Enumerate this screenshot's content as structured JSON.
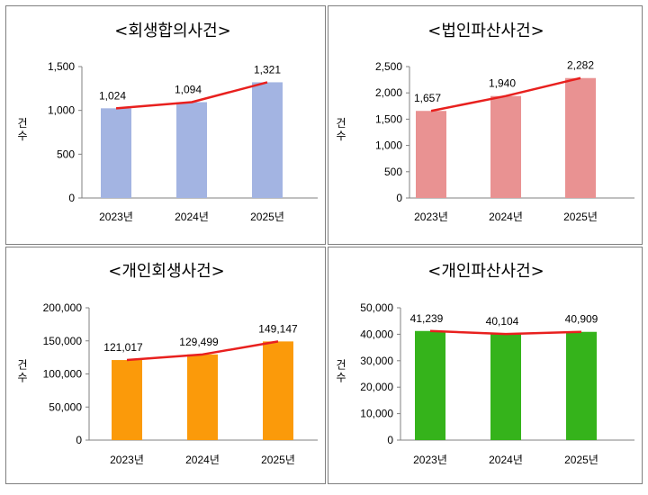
{
  "chart_data": [
    {
      "type": "bar",
      "title": "<회생합의사건>",
      "ylabel": "건수",
      "categories": [
        "2023년",
        "2024년",
        "2025년"
      ],
      "values": [
        1024,
        1094,
        1321
      ],
      "value_labels": [
        "1,024",
        "1,094",
        "1,321"
      ],
      "yticks": [
        0,
        500,
        1000,
        1500
      ],
      "ytick_labels": [
        "0",
        "500",
        "1,000",
        "1,500"
      ],
      "ylim": [
        0,
        1500
      ],
      "bar_color": "#a3b4e2",
      "line_color": "#e8201e",
      "overlay": "line"
    },
    {
      "type": "bar",
      "title": "<법인파산사건>",
      "ylabel": "건수",
      "categories": [
        "2023년",
        "2024년",
        "2025년"
      ],
      "values": [
        1657,
        1940,
        2282
      ],
      "value_labels": [
        "1,657",
        "1,940",
        "2,282"
      ],
      "yticks": [
        0,
        500,
        1000,
        1500,
        2000,
        2500
      ],
      "ytick_labels": [
        "0",
        "500",
        "1,000",
        "1,500",
        "2,000",
        "2,500"
      ],
      "ylim": [
        0,
        2500
      ],
      "bar_color": "#e99292",
      "line_color": "#e8201e",
      "overlay": "line"
    },
    {
      "type": "bar",
      "title": "<개인회생사건>",
      "ylabel": "건수",
      "categories": [
        "2023년",
        "2024년",
        "2025년"
      ],
      "values": [
        121017,
        129499,
        149147
      ],
      "value_labels": [
        "121,017",
        "129,499",
        "149,147"
      ],
      "yticks": [
        0,
        50000,
        100000,
        150000,
        200000
      ],
      "ytick_labels": [
        "0",
        "50,000",
        "100,000",
        "150,000",
        "200,000"
      ],
      "ylim": [
        0,
        200000
      ],
      "bar_color": "#fb9a0a",
      "line_color": "#e8201e",
      "overlay": "line"
    },
    {
      "type": "bar",
      "title": "<개인파산사건>",
      "ylabel": "건수",
      "categories": [
        "2023년",
        "2024년",
        "2025년"
      ],
      "values": [
        41239,
        40104,
        40909
      ],
      "value_labels": [
        "41,239",
        "40,104",
        "40,909"
      ],
      "yticks": [
        0,
        10000,
        20000,
        30000,
        40000,
        50000
      ],
      "ytick_labels": [
        "0",
        "10,000",
        "20,000",
        "30,000",
        "40,000",
        "50,000"
      ],
      "ylim": [
        0,
        50000
      ],
      "bar_color": "#35b31b",
      "line_color": "#e8201e",
      "overlay": "line"
    }
  ]
}
